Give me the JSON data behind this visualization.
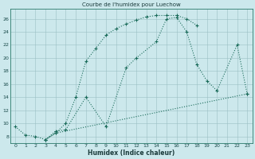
{
  "title": "Courbe de l'humidex pour Luechow",
  "xlabel": "Humidex (Indice chaleur)",
  "background_color": "#cce8ec",
  "line_color": "#1a6b5a",
  "xlim": [
    -0.5,
    23.5
  ],
  "ylim": [
    7.0,
    27.5
  ],
  "xticks": [
    0,
    1,
    2,
    3,
    4,
    5,
    6,
    7,
    8,
    9,
    10,
    11,
    12,
    13,
    14,
    15,
    16,
    17,
    18,
    19,
    20,
    21,
    22,
    23
  ],
  "yticks": [
    8,
    10,
    12,
    14,
    16,
    18,
    20,
    22,
    24,
    26
  ],
  "line1_x": [
    0,
    1,
    2,
    3,
    4,
    5,
    6,
    7,
    8,
    9,
    10,
    11,
    12,
    13,
    14,
    15,
    16,
    17,
    18
  ],
  "line1_y": [
    9.5,
    8.2,
    8.0,
    7.5,
    8.5,
    10.0,
    14.0,
    19.5,
    21.5,
    23.5,
    24.5,
    25.2,
    25.8,
    26.3,
    26.5,
    26.5,
    26.5,
    26.0,
    25.0
  ],
  "line2_x": [
    3,
    4,
    5,
    7,
    9,
    11,
    12,
    14,
    15,
    16,
    17,
    18,
    19,
    20,
    22,
    23
  ],
  "line2_y": [
    7.5,
    8.8,
    9.0,
    14.0,
    9.5,
    18.5,
    20.0,
    22.5,
    26.0,
    26.2,
    24.0,
    19.0,
    16.5,
    15.0,
    22.0,
    14.5
  ],
  "line3_x": [
    3,
    4,
    23
  ],
  "line3_y": [
    7.5,
    8.5,
    14.5
  ]
}
